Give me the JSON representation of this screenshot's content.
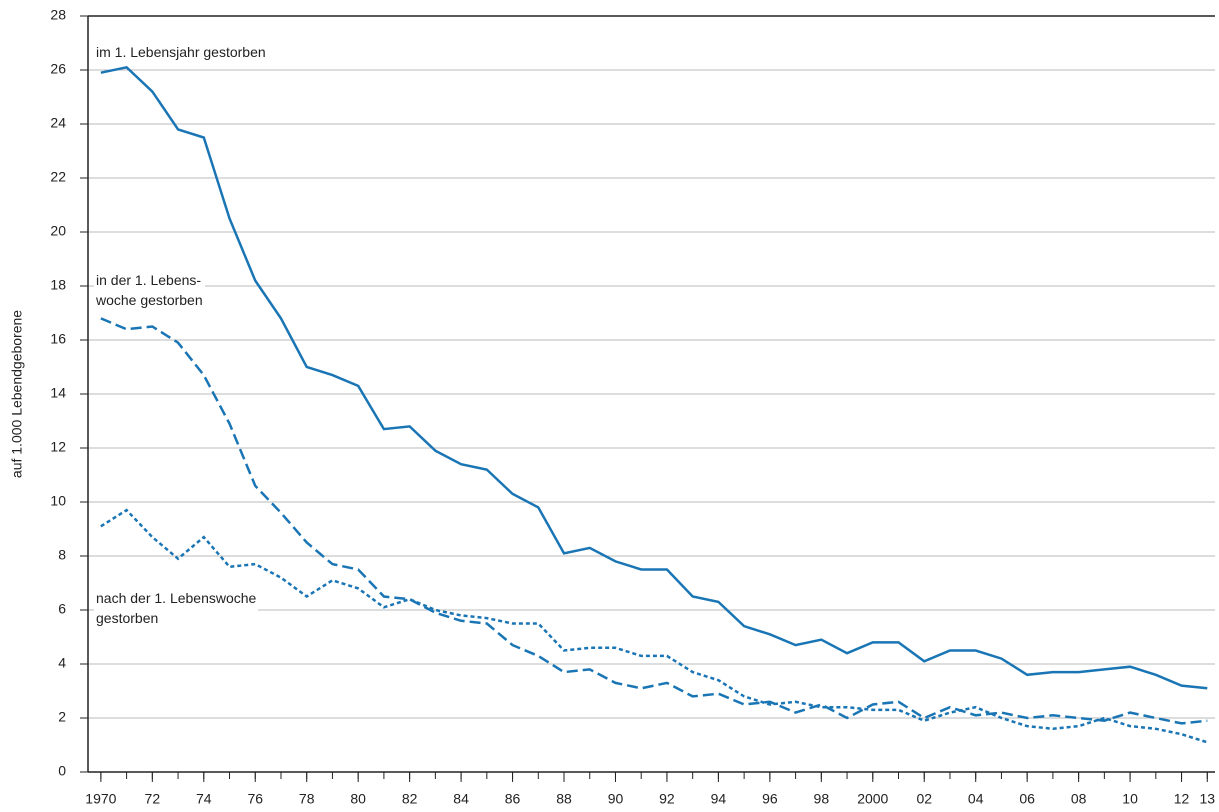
{
  "chart_data": {
    "type": "line",
    "y_label": "auf 1.000 Lebendgeborene",
    "x": [
      1970,
      1971,
      1972,
      1973,
      1974,
      1975,
      1976,
      1977,
      1978,
      1979,
      1980,
      1981,
      1982,
      1983,
      1984,
      1985,
      1986,
      1987,
      1988,
      1989,
      1990,
      1991,
      1992,
      1993,
      1994,
      1995,
      1996,
      1997,
      1998,
      1999,
      2000,
      2001,
      2002,
      2003,
      2004,
      2005,
      2006,
      2007,
      2008,
      2009,
      2010,
      2011,
      2012,
      2013
    ],
    "series": [
      {
        "name": "im 1. Lebensjahr gestorben",
        "color": "#1a75b5",
        "dash": "solid",
        "values": [
          25.9,
          26.1,
          25.2,
          23.8,
          23.5,
          20.5,
          18.2,
          16.8,
          15.0,
          14.7,
          14.3,
          12.7,
          12.8,
          11.9,
          11.4,
          11.2,
          10.3,
          9.8,
          8.1,
          8.3,
          7.8,
          7.5,
          7.5,
          6.5,
          6.3,
          5.4,
          5.1,
          4.7,
          4.9,
          4.4,
          4.8,
          4.8,
          4.1,
          4.5,
          4.5,
          4.2,
          3.6,
          3.7,
          3.7,
          3.8,
          3.9,
          3.6,
          3.2,
          3.1
        ]
      },
      {
        "name": "in der 1. Lebens-\nwoche gestorben",
        "color": "#1a75b5",
        "dash": "dashed",
        "values": [
          16.8,
          16.4,
          16.5,
          15.9,
          14.7,
          12.9,
          10.6,
          9.6,
          8.5,
          7.7,
          7.5,
          6.5,
          6.4,
          5.9,
          5.6,
          5.5,
          4.7,
          4.3,
          3.7,
          3.8,
          3.3,
          3.1,
          3.3,
          2.8,
          2.9,
          2.5,
          2.6,
          2.2,
          2.5,
          2.0,
          2.5,
          2.6,
          2.0,
          2.4,
          2.1,
          2.2,
          2.0,
          2.1,
          2.0,
          1.9,
          2.2,
          2.0,
          1.8,
          1.9
        ]
      },
      {
        "name": "nach der 1. Lebenswoche\ngestorben",
        "color": "#1a75b5",
        "dash": "dotted",
        "values": [
          9.1,
          9.7,
          8.7,
          7.9,
          8.7,
          7.6,
          7.7,
          7.2,
          6.5,
          7.1,
          6.8,
          6.1,
          6.4,
          6.0,
          5.8,
          5.7,
          5.5,
          5.5,
          4.5,
          4.6,
          4.6,
          4.3,
          4.3,
          3.7,
          3.4,
          2.8,
          2.5,
          2.6,
          2.4,
          2.4,
          2.3,
          2.3,
          1.9,
          2.2,
          2.4,
          2.0,
          1.7,
          1.6,
          1.7,
          2.0,
          1.7,
          1.6,
          1.4,
          1.1
        ]
      }
    ],
    "xlim": [
      1969.5,
      2013.3
    ],
    "xticks": [
      {
        "value": 1970,
        "label": "1970"
      },
      {
        "value": 1972,
        "label": "72"
      },
      {
        "value": 1974,
        "label": "74"
      },
      {
        "value": 1976,
        "label": "76"
      },
      {
        "value": 1978,
        "label": "78"
      },
      {
        "value": 1980,
        "label": "80"
      },
      {
        "value": 1982,
        "label": "82"
      },
      {
        "value": 1984,
        "label": "84"
      },
      {
        "value": 1986,
        "label": "86"
      },
      {
        "value": 1988,
        "label": "88"
      },
      {
        "value": 1990,
        "label": "90"
      },
      {
        "value": 1992,
        "label": "92"
      },
      {
        "value": 1994,
        "label": "94"
      },
      {
        "value": 1996,
        "label": "96"
      },
      {
        "value": 1998,
        "label": "98"
      },
      2000,
      {
        "value": 2002,
        "label": "02"
      },
      {
        "value": 2004,
        "label": "04"
      },
      {
        "value": 2006,
        "label": "06"
      },
      {
        "value": 2008,
        "label": "08"
      },
      {
        "value": 2010,
        "label": "10"
      },
      {
        "value": 2012,
        "label": "12"
      },
      {
        "value": 2013,
        "label": "13"
      }
    ],
    "ylim": [
      0,
      28
    ],
    "yticks": [
      0,
      2,
      4,
      6,
      8,
      10,
      12,
      14,
      16,
      18,
      20,
      22,
      24,
      26,
      28
    ],
    "grid": true
  }
}
